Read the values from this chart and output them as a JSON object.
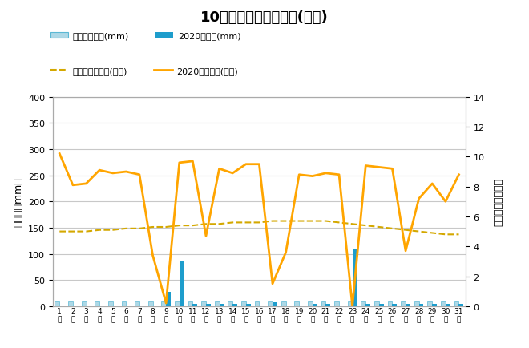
{
  "title": "10月降水量・日照時間(日別)",
  "days": [
    1,
    2,
    3,
    4,
    5,
    6,
    7,
    8,
    9,
    10,
    11,
    12,
    13,
    14,
    15,
    16,
    17,
    18,
    19,
    20,
    21,
    22,
    23,
    24,
    25,
    26,
    27,
    28,
    29,
    30,
    31
  ],
  "rain_avg": [
    9,
    9,
    9,
    9,
    9,
    9,
    9,
    9,
    9,
    9,
    9,
    9,
    9,
    9,
    9,
    9,
    9,
    9,
    9,
    9,
    9,
    9,
    9,
    9,
    9,
    9,
    9,
    9,
    9,
    9,
    9
  ],
  "rain_2020": [
    0,
    0,
    0,
    0,
    0,
    0,
    0,
    0,
    28,
    85,
    5,
    5,
    5,
    5,
    5,
    0,
    8,
    0,
    0,
    5,
    5,
    0,
    108,
    5,
    5,
    5,
    5,
    5,
    5,
    5,
    5
  ],
  "sunshine_avg": [
    5.0,
    5.0,
    5.0,
    5.1,
    5.1,
    5.2,
    5.2,
    5.3,
    5.3,
    5.4,
    5.4,
    5.5,
    5.5,
    5.6,
    5.6,
    5.6,
    5.7,
    5.7,
    5.7,
    5.7,
    5.7,
    5.6,
    5.5,
    5.4,
    5.3,
    5.2,
    5.1,
    5.0,
    4.9,
    4.8,
    4.8
  ],
  "sunshine_2020": [
    10.2,
    8.1,
    8.2,
    9.1,
    8.9,
    9.0,
    8.8,
    3.4,
    0.2,
    9.6,
    9.7,
    4.7,
    9.2,
    8.9,
    9.5,
    9.5,
    1.5,
    3.6,
    8.8,
    8.7,
    8.9,
    8.8,
    0.0,
    9.4,
    9.3,
    9.2,
    3.7,
    7.2,
    8.2,
    7.0,
    8.8
  ],
  "ylabel_left": "降水量（mm）",
  "ylabel_right": "日照時間（時間）",
  "ylim_left": [
    0,
    400
  ],
  "ylim_right": [
    0,
    14
  ],
  "yticks_left": [
    0,
    50,
    100,
    150,
    200,
    250,
    300,
    350,
    400
  ],
  "yticks_right": [
    0,
    2,
    4,
    6,
    8,
    10,
    12,
    14
  ],
  "legend_row1": [
    "降水量平年値(mm)",
    "2020降水量(mm)"
  ],
  "legend_row2": [
    "日照時間平年値(時間)",
    "2020日照時間(時間)"
  ],
  "bar_avg_color": "#add8e6",
  "bar_avg_edge": "#5bb8d4",
  "bar_2020_color": "#1e9dcc",
  "line_avg_color": "#d4a800",
  "line_2020_color": "#ffa500",
  "background_color": "#ffffff",
  "grid_color": "#c8c8c8"
}
